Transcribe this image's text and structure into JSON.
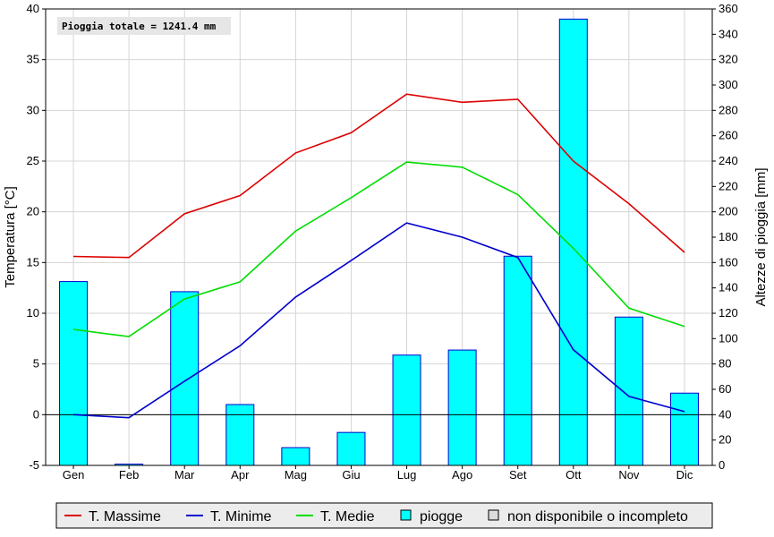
{
  "chart_data": {
    "type": "bar+line",
    "annotation": "Pioggia totale = 1241.4 mm",
    "categories": [
      "Gen",
      "Feb",
      "Mar",
      "Apr",
      "Mag",
      "Giu",
      "Lug",
      "Ago",
      "Set",
      "Ott",
      "Nov",
      "Dic"
    ],
    "y_left": {
      "label": "Temperatura [°C]",
      "min": -5,
      "max": 40,
      "step": 5
    },
    "y_right": {
      "label": "Altezze di pioggia [mm]",
      "min": 0,
      "max": 360,
      "step": 20
    },
    "bars": {
      "name": "piogge",
      "axis": "right",
      "color": "#00ffff",
      "stroke": "#0000cc",
      "values": [
        145,
        1,
        137,
        48,
        14,
        26,
        87,
        91,
        165,
        352,
        117,
        57
      ]
    },
    "series": [
      {
        "name": "T. Massime",
        "color": "#dd0000",
        "values": [
          15.6,
          15.5,
          19.8,
          21.6,
          25.8,
          27.8,
          31.6,
          30.8,
          31.1,
          25.0,
          20.8,
          16.0
        ]
      },
      {
        "name": "T. Minime",
        "color": "#0000cc",
        "values": [
          0.0,
          -0.3,
          3.3,
          6.8,
          11.6,
          15.2,
          18.9,
          17.5,
          15.5,
          6.4,
          1.8,
          0.3
        ]
      },
      {
        "name": "T. Medie",
        "color": "#00dd00",
        "values": [
          8.4,
          7.7,
          11.4,
          13.1,
          18.1,
          21.4,
          24.9,
          24.4,
          21.7,
          16.4,
          10.5,
          8.7
        ]
      }
    ],
    "legend": {
      "position": "bottom",
      "items": [
        {
          "label": "T. Massime",
          "kind": "line",
          "color": "#dd0000"
        },
        {
          "label": "T. Minime",
          "kind": "line",
          "color": "#0000cc"
        },
        {
          "label": "T. Medie",
          "kind": "line",
          "color": "#00dd00"
        },
        {
          "label": "piogge",
          "kind": "box",
          "color": "#00ffff"
        },
        {
          "label": "non disponibile o incompleto",
          "kind": "box",
          "color": "#dddddd"
        }
      ]
    },
    "grid": true
  }
}
